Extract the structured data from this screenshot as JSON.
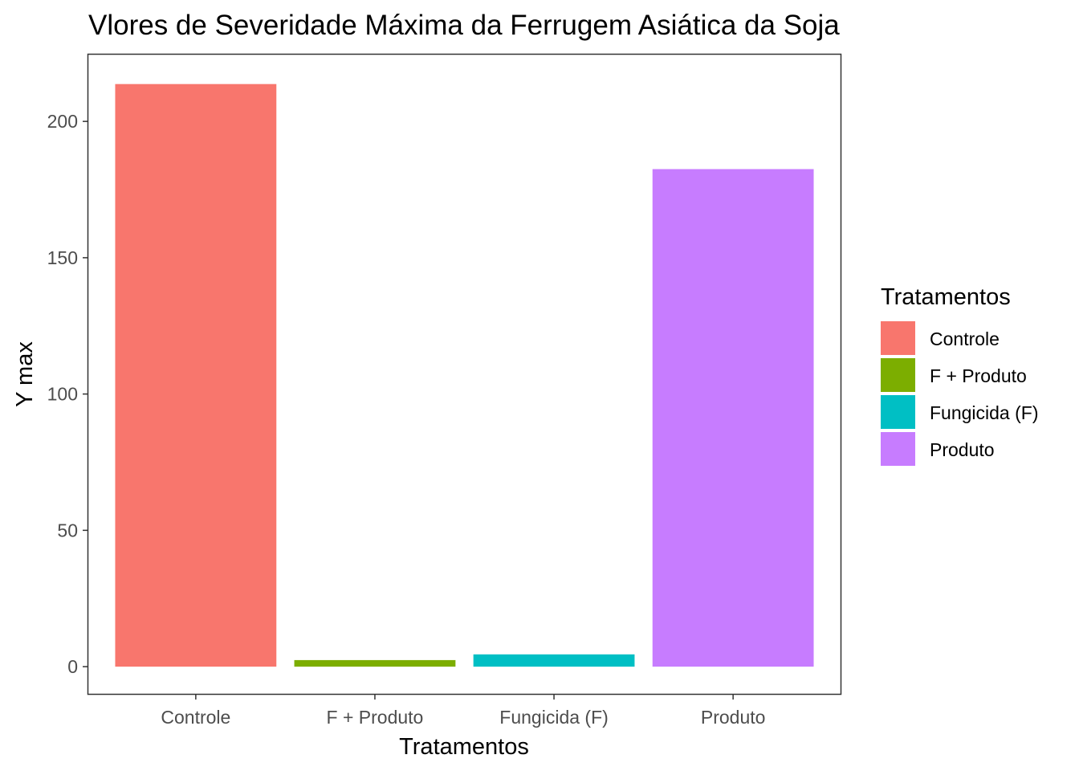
{
  "chart_data": {
    "type": "bar",
    "title": "Vlores de Severidade Máxima da Ferrugem Asiática da Soja",
    "xlabel": "Tratamentos",
    "ylabel": "Y max",
    "categories": [
      "Controle",
      "F + Produto",
      "Fungicida (F)",
      "Produto"
    ],
    "values": [
      213.7,
      2.4,
      4.5,
      182.5
    ],
    "colors": [
      "#F8766D",
      "#7CAE00",
      "#00BFC4",
      "#C77CFF"
    ],
    "ylim": [
      -10,
      224.5
    ],
    "yticks": [
      0,
      50,
      100,
      150,
      200
    ],
    "grid": false,
    "legend": {
      "title": "Tratamentos",
      "position": "right",
      "entries": [
        "Controle",
        "F + Produto",
        "Fungicida (F)",
        "Produto"
      ]
    }
  }
}
